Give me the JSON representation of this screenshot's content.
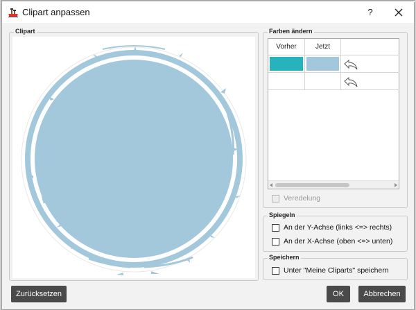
{
  "window": {
    "title": "Clipart anpassen",
    "help_label": "?",
    "icons": {
      "app": "ship-icon",
      "close": "close-icon"
    }
  },
  "clipart": {
    "label": "Clipart",
    "shape": "grunge-circle",
    "fill_color": "#a3c8db"
  },
  "colors": {
    "label": "Farben ändern",
    "columns": [
      "Vorher",
      "Jetzt"
    ],
    "rows": [
      {
        "vorher_color": "#27b3bb",
        "jetzt_color": "#a3c8db",
        "action_icon": "undo-icon"
      },
      {
        "vorher_color": "",
        "jetzt_color": "",
        "action_icon": "undo-icon"
      }
    ],
    "refinement": {
      "label": "Veredelung",
      "checked": false,
      "enabled": false
    }
  },
  "mirror": {
    "label": "Spiegeln",
    "y_axis_label": "An der Y-Achse (links <=> rechts)",
    "x_axis_label": "An der X-Achse (oben <=> unten)",
    "y_checked": false,
    "x_checked": false
  },
  "save": {
    "label": "Speichern",
    "my_cliparts_label": "Unter \"Meine Cliparts\" speichern",
    "checked": false
  },
  "buttons": {
    "reset": "Zurücksetzen",
    "ok": "OK",
    "cancel": "Abbrechen"
  }
}
